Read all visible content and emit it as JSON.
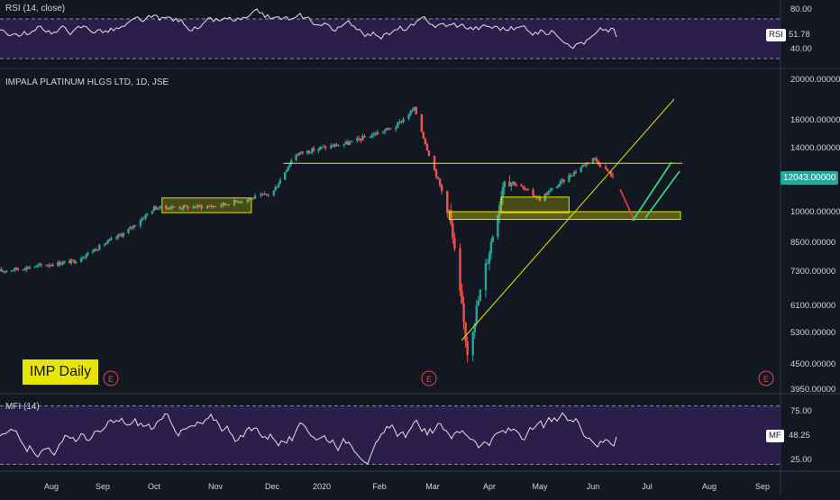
{
  "colors": {
    "background": "#131722",
    "candle_up": "#26a69a",
    "candle_down": "#ef5350",
    "line": "#e0e3eb",
    "band": "#2a1f4a",
    "yellow": "#e6e600",
    "green": "#3ddc84",
    "red": "#e8404a",
    "grid": "#2a2e39",
    "text": "#d1d4dc"
  },
  "rsi_panel": {
    "title": "RSI (14, close)",
    "badge_label": "RSI",
    "current_value": "51.78",
    "ticks": [
      "80.00",
      "40.00"
    ]
  },
  "main_panel": {
    "title": "IMPALA PLATINUM HLGS LTD, 1D, JSE",
    "current_price": "12043.00000",
    "price_ticks": [
      "20000.00000",
      "16000.00000",
      "14000.00000",
      "10000.00000",
      "8500.00000",
      "7300.00000",
      "6100.00000",
      "5300.00000",
      "4500.00000",
      "3950.00000"
    ],
    "annotation": "IMP Daily",
    "event_marker": "E"
  },
  "mfi_panel": {
    "title": "MFI (14)",
    "badge_label": "MF",
    "current_value": "48.25",
    "ticks": [
      "75.00",
      "25.00"
    ]
  },
  "x_axis": {
    "labels": [
      "Aug",
      "Sep",
      "Oct",
      "Nov",
      "Dec",
      "2020",
      "Feb",
      "Mar",
      "Apr",
      "May",
      "Jun",
      "Jul",
      "Aug",
      "Sep"
    ]
  },
  "chart_data": {
    "type": "candlestick",
    "symbol": "IMPALA PLATINUM HLGS LTD",
    "interval": "1D",
    "exchange": "JSE",
    "price_scale": "log",
    "price_range": [
      3950,
      20000
    ],
    "key_price_levels": {
      "resistance": 12900,
      "support_zone": [
        9600,
        10000
      ],
      "consolidation_box_oct": [
        9950,
        10750
      ],
      "consolidation_box_apr_may": [
        9950,
        10800
      ]
    },
    "anchor_prices": [
      {
        "date": "2019-07-01",
        "price": 7300
      },
      {
        "date": "2019-08-15",
        "price": 7700
      },
      {
        "date": "2019-09-15",
        "price": 9000
      },
      {
        "date": "2019-10-01",
        "price": 10200
      },
      {
        "date": "2019-11-01",
        "price": 10300
      },
      {
        "date": "2019-12-01",
        "price": 11000
      },
      {
        "date": "2019-12-15",
        "price": 13500
      },
      {
        "date": "2020-01-01",
        "price": 14000
      },
      {
        "date": "2020-01-15",
        "price": 14300
      },
      {
        "date": "2020-02-10",
        "price": 15500
      },
      {
        "date": "2020-02-20",
        "price": 17000
      },
      {
        "date": "2020-03-01",
        "price": 12800
      },
      {
        "date": "2020-03-10",
        "price": 10000
      },
      {
        "date": "2020-03-20",
        "price": 4800
      },
      {
        "date": "2020-03-31",
        "price": 7800
      },
      {
        "date": "2020-04-10",
        "price": 12000
      },
      {
        "date": "2020-05-01",
        "price": 10700
      },
      {
        "date": "2020-06-01",
        "price": 13300
      },
      {
        "date": "2020-06-12",
        "price": 12043
      }
    ],
    "rsi": {
      "last": 51.78,
      "levels": [
        70,
        30
      ],
      "ticks": [
        80,
        40
      ]
    },
    "mfi": {
      "last": 48.25,
      "levels": [
        80,
        20
      ],
      "ticks": [
        75,
        25
      ]
    }
  }
}
